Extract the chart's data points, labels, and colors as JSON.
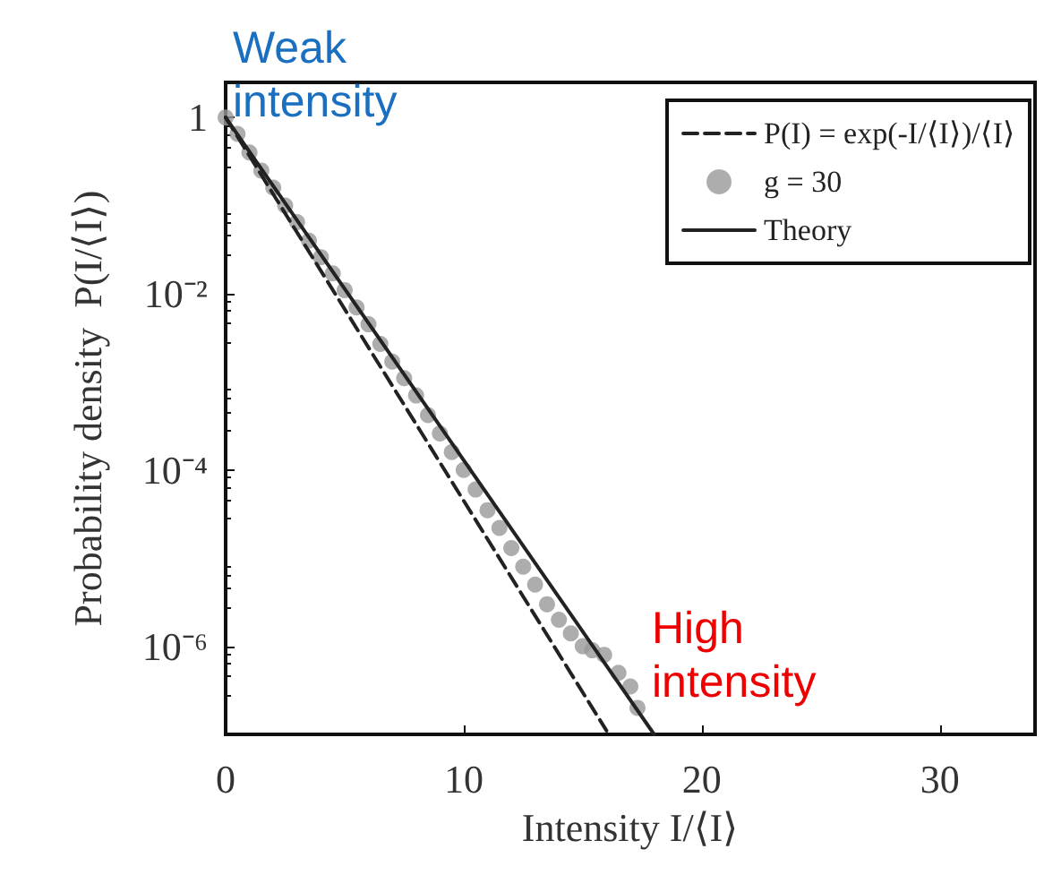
{
  "chart_data": {
    "type": "scatter",
    "xlabel": "Intensity I/⟨I⟩",
    "ylabel": "Probability density  P(I/⟨I⟩)",
    "log": "y",
    "xlim": [
      0,
      34
    ],
    "xticks": [
      0,
      10,
      20,
      30
    ],
    "ylim": [
      1e-07,
      2.5
    ],
    "yticks": [
      1,
      {
        "value": 0.01,
        "label": "10⁻²"
      },
      {
        "value": 0.0001,
        "label": "10⁻⁴"
      },
      {
        "value": 1e-06,
        "label": "10⁻⁶"
      }
    ],
    "legend": "top right",
    "grid": false,
    "series": [
      {
        "name": "P(I) = exp(-I/⟨I⟩)/⟨I⟩",
        "type": "line",
        "line_style": "dashed",
        "marker": "none",
        "color": "#222222",
        "x": [
          0,
          16
        ],
        "values": [
          1,
          1.1e-07
        ]
      },
      {
        "name": "g = 30",
        "marker": "circle",
        "color": "#999999",
        "x": [
          0,
          0.5,
          1,
          1.5,
          2,
          2.5,
          3,
          3.5,
          4,
          4.5,
          5,
          5.5,
          6,
          6.5,
          7,
          7.5,
          8,
          8.5,
          9,
          9.5,
          10,
          10.5,
          11,
          11.5,
          12,
          12.5,
          13,
          13.5,
          14,
          14.5,
          15,
          15.4,
          15.9,
          16.5,
          17,
          17.3
        ],
        "values": [
          1,
          0.65,
          0.4,
          0.25,
          0.16,
          0.1,
          0.065,
          0.04,
          0.026,
          0.017,
          0.011,
          0.007,
          0.0045,
          0.0027,
          0.0017,
          0.0011,
          0.0007,
          0.00042,
          0.00026,
          0.00016,
          0.0001,
          6e-05,
          3.5e-05,
          2.2e-05,
          1.3e-05,
          8e-06,
          5e-06,
          3e-06,
          2e-06,
          1.4e-06,
          1e-06,
          9e-07,
          8e-07,
          5e-07,
          3.5e-07,
          2e-07
        ]
      },
      {
        "name": "Theory",
        "type": "line",
        "line_style": "solid",
        "marker": "none",
        "color": "#222222",
        "x": [
          0,
          18
        ],
        "values": [
          1,
          1e-07
        ]
      }
    ],
    "annotations": [
      "Weak intensity",
      "High intensity"
    ]
  }
}
